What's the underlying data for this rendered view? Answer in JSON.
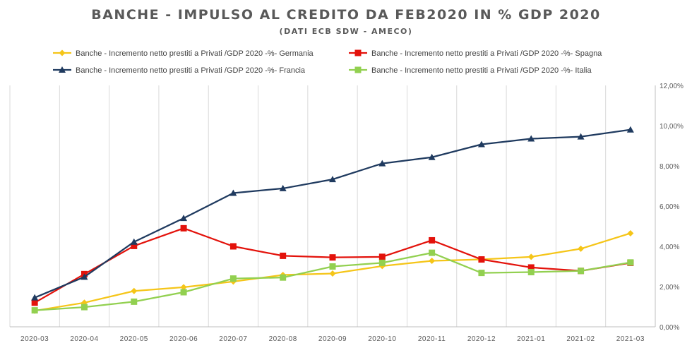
{
  "chart_data": {
    "type": "line",
    "title": "BANCHE - IMPULSO AL CREDITO DA FEB2020 IN % GDP 2020",
    "subtitle": "(DATI ECB SDW - AMECO)",
    "xlabel": "",
    "ylabel": "",
    "x": [
      "2020-03",
      "2020-04",
      "2020-05",
      "2020-06",
      "2020-07",
      "2020-08",
      "2020-09",
      "2020-10",
      "2020-11",
      "2020-12",
      "2021-01",
      "2021-02",
      "2021-03"
    ],
    "ylim": [
      0,
      12
    ],
    "y_axis_position": "right",
    "y_ticks": [
      "0,00%",
      "2,00%",
      "4,00%",
      "6,00%",
      "8,00%",
      "10,00%",
      "12,00%"
    ],
    "grid": "vertical",
    "legend_position": "top",
    "series": [
      {
        "name": "Banche - Incremento netto prestiti a Privati /GDP 2020 -%- Germania",
        "color": "#F5C518",
        "marker": "diamond",
        "values": [
          0.8,
          1.2,
          1.78,
          1.97,
          2.25,
          2.58,
          2.65,
          3.02,
          3.28,
          3.35,
          3.48,
          3.88,
          4.65
        ]
      },
      {
        "name": "Banche - Incremento netto prestiti a Privati /GDP 2020 -%- Spagna",
        "color": "#E3120B",
        "marker": "square",
        "values": [
          1.2,
          2.62,
          4.02,
          4.9,
          4.0,
          3.53,
          3.45,
          3.48,
          4.3,
          3.35,
          2.95,
          2.78,
          3.18
        ]
      },
      {
        "name": "Banche - Incremento netto prestiti a Privati /GDP 2020 -%- Francia",
        "color": "#1F3A5F",
        "marker": "triangle",
        "values": [
          1.45,
          2.48,
          4.22,
          5.4,
          6.65,
          6.88,
          7.33,
          8.12,
          8.43,
          9.07,
          9.35,
          9.45,
          9.8
        ]
      },
      {
        "name": "Banche - Incremento netto prestiti a Privati /GDP 2020 -%- Italia",
        "color": "#92D050",
        "marker": "square",
        "values": [
          0.82,
          0.98,
          1.25,
          1.72,
          2.4,
          2.45,
          3.0,
          3.18,
          3.68,
          2.68,
          2.72,
          2.78,
          3.2
        ]
      }
    ]
  }
}
